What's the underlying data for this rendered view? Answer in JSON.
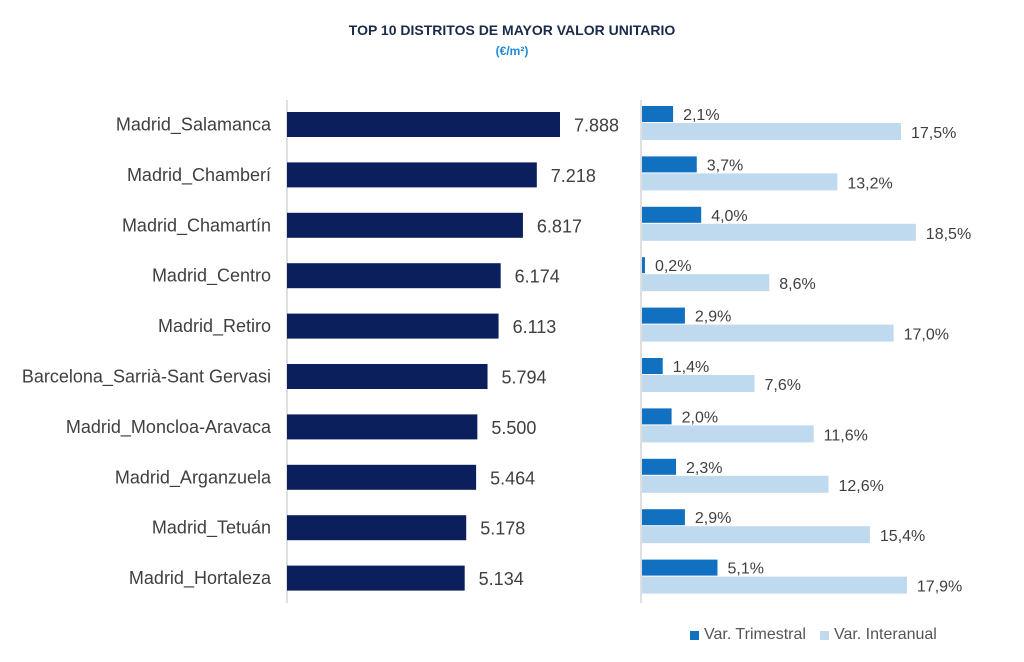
{
  "title": "TOP 10 DISTRITOS DE MAYOR VALOR UNITARIO",
  "subtitle": "(€/m²)",
  "colors": {
    "value_bar": "#0a1f5c",
    "trimestral": "#1170bf",
    "interanual": "#bfd9ef",
    "axis": "#bfbfbf"
  },
  "chart_data": [
    {
      "type": "bar",
      "orientation": "horizontal",
      "title": "TOP 10 DISTRITOS DE MAYOR VALOR UNITARIO",
      "subtitle": "(€/m²)",
      "categories": [
        "Madrid_Salamanca",
        "Madrid_Chamberí",
        "Madrid_Chamartín",
        "Madrid_Centro",
        "Madrid_Retiro",
        "Barcelona_Sarrià-Sant Gervasi",
        "Madrid_Moncloa-Aravaca",
        "Madrid_Arganzuela",
        "Madrid_Tetuán",
        "Madrid_Hortaleza"
      ],
      "values": [
        7888,
        7218,
        6817,
        6174,
        6113,
        5794,
        5500,
        5464,
        5178,
        5134
      ],
      "value_labels": [
        "7.888",
        "7.218",
        "6.817",
        "6.174",
        "6.113",
        "5.794",
        "5.500",
        "5.464",
        "5.178",
        "5.134"
      ],
      "xlim": [
        0,
        9000
      ]
    },
    {
      "type": "bar",
      "orientation": "horizontal",
      "categories": [
        "Madrid_Salamanca",
        "Madrid_Chamberí",
        "Madrid_Chamartín",
        "Madrid_Centro",
        "Madrid_Retiro",
        "Barcelona_Sarrià-Sant Gervasi",
        "Madrid_Moncloa-Aravaca",
        "Madrid_Arganzuela",
        "Madrid_Tetuán",
        "Madrid_Hortaleza"
      ],
      "series": [
        {
          "name": "Var. Trimestral",
          "values": [
            2.1,
            3.7,
            4.0,
            0.2,
            2.9,
            1.4,
            2.0,
            2.3,
            2.9,
            5.1
          ],
          "labels": [
            "2,1%",
            "3,7%",
            "4,0%",
            "0,2%",
            "2,9%",
            "1,4%",
            "2,0%",
            "2,3%",
            "2,9%",
            "5,1%"
          ]
        },
        {
          "name": "Var. Interanual",
          "values": [
            17.5,
            13.2,
            18.5,
            8.6,
            17.0,
            7.6,
            11.6,
            12.6,
            15.4,
            17.9
          ],
          "labels": [
            "17,5%",
            "13,2%",
            "18,5%",
            "8,6%",
            "17,0%",
            "7,6%",
            "11,6%",
            "12,6%",
            "15,4%",
            "17,9%"
          ]
        }
      ],
      "legend": "bottom-right"
    }
  ]
}
